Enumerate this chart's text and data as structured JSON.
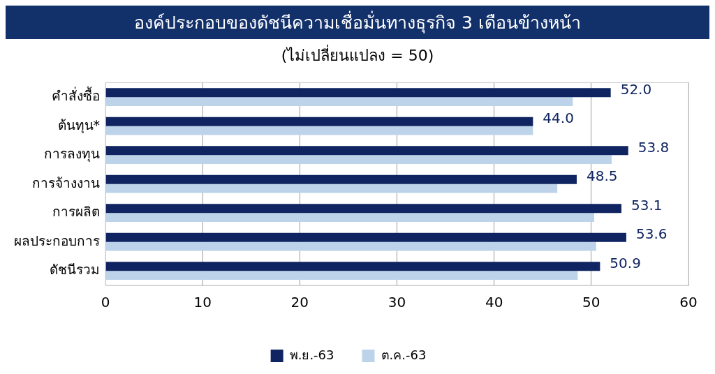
{
  "chart_data": {
    "type": "bar",
    "orientation": "horizontal",
    "title": "องค์ประกอบของดัชนีความเชื่อมั่นทางธุรกิจ 3 เดือนข้างหน้า",
    "subtitle": "(ไม่เปลี่ยนแปลง = 50)",
    "categories": [
      "คำสั่งซื้อ",
      "ต้นทุน*",
      "การลงทุน",
      "การจ้างงาน",
      "การผลิต",
      "ผลประกอบการ",
      "ดัชนีรวม"
    ],
    "series": [
      {
        "name": "พ.ย.-63",
        "color": "#0f2460",
        "values": [
          52.0,
          44.0,
          53.8,
          48.5,
          53.1,
          53.6,
          50.9
        ],
        "value_labels": [
          "52.0",
          "44.0",
          "53.8",
          "48.5",
          "53.1",
          "53.6",
          "50.9"
        ]
      },
      {
        "name": "ต.ค.-63",
        "color": "#bdd3ea",
        "values": [
          48.1,
          44.0,
          52.1,
          46.5,
          50.3,
          50.5,
          48.6
        ]
      }
    ],
    "xlim": [
      0,
      60
    ],
    "xticks": [
      0,
      10,
      20,
      30,
      40,
      50,
      60
    ],
    "grid": "x",
    "legend": "bottom"
  }
}
